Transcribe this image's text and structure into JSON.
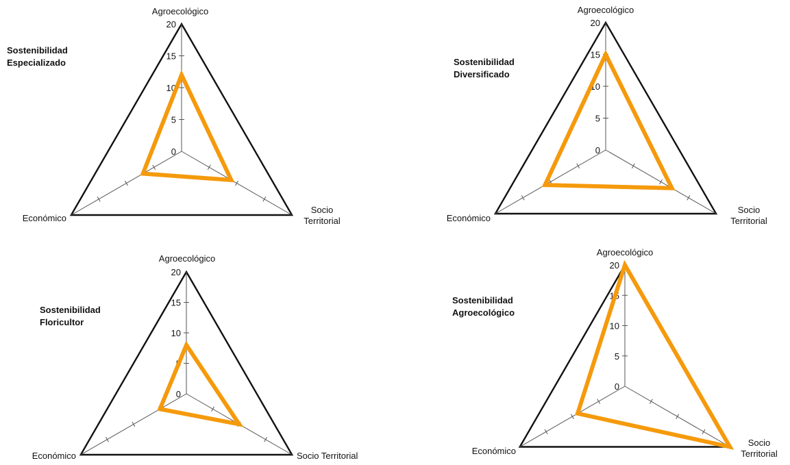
{
  "colors": {
    "series": "#F59A0C",
    "frame": "#111111",
    "axis": "#555555"
  },
  "chart_data": [
    {
      "type": "radar",
      "title_lines": [
        "Sostenibilidad",
        "Especializado"
      ],
      "axes": [
        "Agroecológico",
        "Socio Territorial",
        "Económico"
      ],
      "axis_label_lines": [
        [
          "Agroecológico"
        ],
        [
          "Socio",
          "Territorial"
        ],
        [
          "Económico"
        ]
      ],
      "rlim": [
        0,
        20
      ],
      "ticks": [
        0,
        5,
        10,
        15,
        20
      ],
      "values": [
        12,
        9,
        7
      ]
    },
    {
      "type": "radar",
      "title_lines": [
        "Sostenibilidad",
        "Diversificado"
      ],
      "axes": [
        "Agroecológico",
        "Socio Territorial",
        "Económico"
      ],
      "axis_label_lines": [
        [
          "Agroecológico"
        ],
        [
          "Socio",
          "Territorial"
        ],
        [
          "Económico"
        ]
      ],
      "rlim": [
        0,
        20
      ],
      "ticks": [
        0,
        5,
        10,
        15,
        20
      ],
      "values": [
        15,
        12,
        11
      ]
    },
    {
      "type": "radar",
      "title_lines": [
        "Sostenibilidad",
        "Floricultor"
      ],
      "axes": [
        "Agroecológico",
        "Socio Territorial",
        "Económico"
      ],
      "axis_label_lines": [
        [
          "Agroecológico"
        ],
        [
          "Socio Territorial"
        ],
        [
          "Económico"
        ]
      ],
      "rlim": [
        0,
        20
      ],
      "ticks": [
        0,
        5,
        10,
        15,
        20
      ],
      "values": [
        8,
        10,
        5
      ]
    },
    {
      "type": "radar",
      "title_lines": [
        "Sostenibilidad",
        "Agroecológico"
      ],
      "axes": [
        "Agroecológico",
        "Socio Territorial",
        "Económico"
      ],
      "axis_label_lines": [
        [
          "Agroecológico"
        ],
        [
          "Socio",
          "Territorial"
        ],
        [
          "Económico"
        ]
      ],
      "rlim": [
        0,
        20
      ],
      "ticks": [
        0,
        5,
        10,
        15,
        20
      ],
      "values": [
        20,
        20,
        9
      ]
    }
  ]
}
